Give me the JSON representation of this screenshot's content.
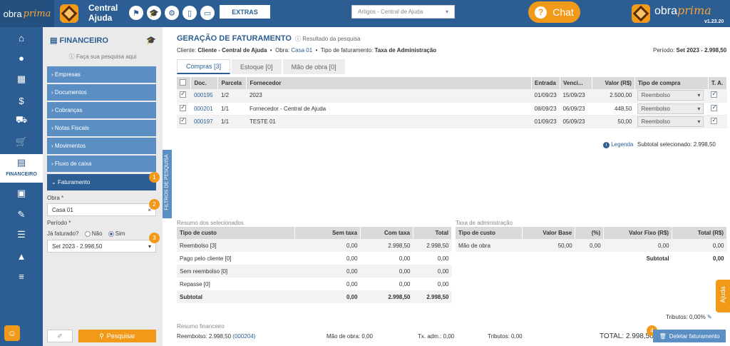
{
  "topbar": {
    "brand_name": "obra",
    "brand_name_italic": "prima",
    "app_title_line1": "Central",
    "app_title_line2": "Ajuda",
    "extras_label": "EXTRAS",
    "search_select_value": "Artigos - Central de Ajuda",
    "chat_label": "Chat",
    "version": "v1.23.20",
    "icons": [
      "flag-icon",
      "graduation-cap-icon",
      "gear-icon",
      "mobile-icon",
      "monitor-icon"
    ]
  },
  "leftnav": {
    "active_label": "FINANCEIRO",
    "icons": [
      "home-icon",
      "user-icon",
      "building-icon",
      "document-dollar-icon",
      "truck-icon",
      "cart-icon",
      "calculator-icon",
      "boxes-icon",
      "file-edit-icon",
      "checklist-icon",
      "chart-icon",
      "file-text-icon"
    ]
  },
  "panel": {
    "title": "FINANCEIRO",
    "search_hint": "Faça sua pesquisa aqui",
    "menu": [
      "Empresas",
      "Documentos",
      "Cobranças",
      "Notas Fiscais",
      "Movimentos",
      "Fluxo de caixa",
      "Faturamento"
    ],
    "obra_label": "Obra *",
    "obra_value": "Casa 01",
    "periodo_label": "Período *",
    "ja_faturado_label": "Já faturado?",
    "radio_nao": "Não",
    "radio_sim": "Sim",
    "periodo_value": "Set 2023 - 2.998,50",
    "search_button": "Pesquisar",
    "vertical_tab": "FILTROS DE PESQUISA",
    "badges": [
      "1",
      "2",
      "3"
    ]
  },
  "main": {
    "title": "GERAÇÃO DE FATURAMENTO",
    "result_link": "Resultado da pesquisa",
    "cliente_label": "Cliente:",
    "cliente_value": "Cliente - Central de Ajuda",
    "obra_label": "Obra:",
    "obra_value": "Casa 01",
    "tipo_label": "Tipo de faturamento:",
    "tipo_value": "Taxa de Administração",
    "periodo_label": "Período:",
    "periodo_value": "Set 2023 - 2.998,50",
    "tabs": [
      "Compras [3]",
      "Estoque [0]",
      "Mão de obra [0]"
    ]
  },
  "purchases": {
    "headers": [
      "Doc.",
      "Parcela",
      "Fornecedor",
      "Entrada",
      "Venci...",
      "Valor (R$)",
      "Tipo de compra",
      "T. A."
    ],
    "rows": [
      {
        "doc": "000195",
        "parcela": "1/2",
        "fornecedor": "2023",
        "entrada": "01/09/23",
        "venc": "15/09/23",
        "valor": "2.500,00",
        "tipo": "Reembolso"
      },
      {
        "doc": "000201",
        "parcela": "1/1",
        "fornecedor": "Fornecedor - Central de Ajuda",
        "entrada": "08/09/23",
        "venc": "06/09/23",
        "valor": "448,50",
        "tipo": "Reembolso"
      },
      {
        "doc": "000197",
        "parcela": "1/1",
        "fornecedor": "TESTE 01",
        "entrada": "01/09/23",
        "venc": "05/09/23",
        "valor": "50,00",
        "tipo": "Reembolso"
      }
    ],
    "legend_label": "Legenda",
    "subtotal_label": "Subtotal selecionado: 2.998,50"
  },
  "resumo": {
    "title": "Resumo dos selecionados",
    "headers": [
      "Tipo de custo",
      "Sem taxa",
      "Com taxa",
      "Total"
    ],
    "rows": [
      [
        "Reembolso [3]",
        "0,00",
        "2.998,50",
        "2.998,50"
      ],
      [
        "Pago pelo cliente [0]",
        "0,00",
        "0,00",
        "0,00"
      ],
      [
        "Sem reembolso [0]",
        "0,00",
        "0,00",
        "0,00"
      ],
      [
        "Repasse [0]",
        "0,00",
        "0,00",
        "0,00"
      ]
    ],
    "subtotal": [
      "Subtotal",
      "0,00",
      "2.998,50",
      "2.998,50"
    ]
  },
  "taxa": {
    "title": "Taxa de administração",
    "headers": [
      "Tipo de custo",
      "Valor Base",
      "(%)",
      "Valor Fixo (R$)",
      "Total (R$)"
    ],
    "row": [
      "Mão de obra",
      "50,00",
      "0,00",
      "0,00",
      "0,00"
    ],
    "subtotal_label": "Subtotal",
    "subtotal_value": "0,00"
  },
  "footer": {
    "tributos": "Tributos: 0,00%",
    "resumo_financeiro": "Resumo financeiro",
    "reembolso_label": "Reembolso: 2.998,50",
    "reembolso_link": "(000204)",
    "mao_obra": "Mão de obra: 0,00",
    "taxa_adm": "Tx. adm.: 0,00",
    "tributos_val": "Tributos: 0,00",
    "total": "TOTAL: 2.998,50",
    "delete_button": "Deletar faturamento",
    "badge4": "4",
    "ajuda": "Ajuda"
  }
}
